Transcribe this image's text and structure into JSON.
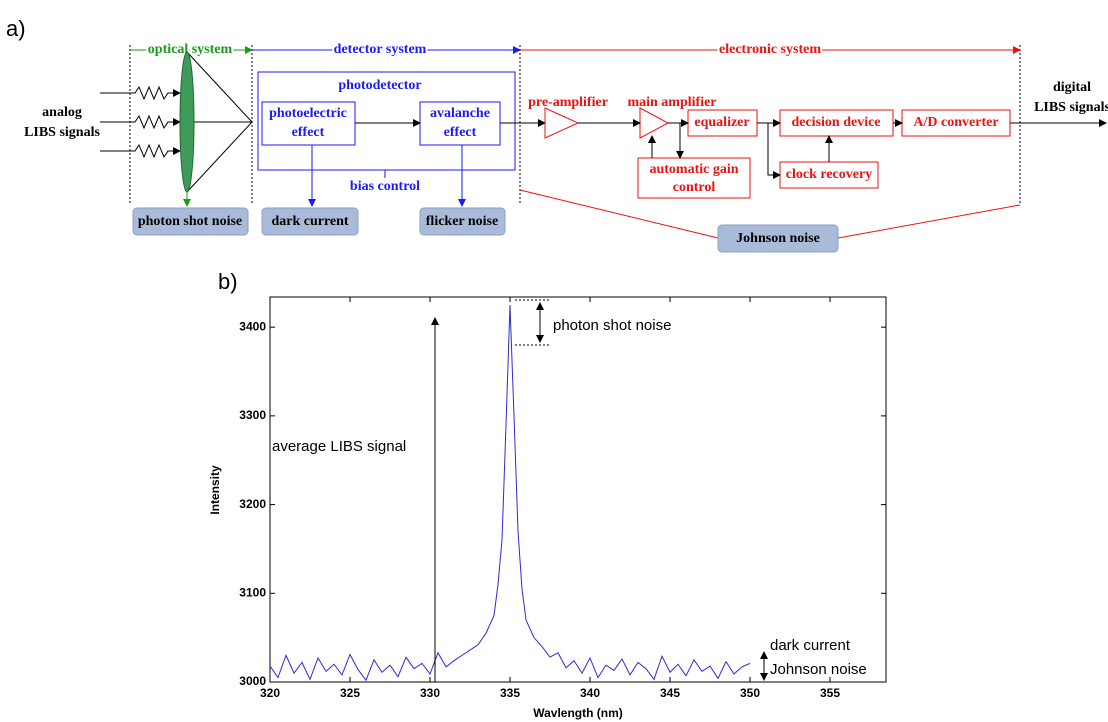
{
  "diagram": {
    "panel_label": "a)",
    "sections": [
      "optical system",
      "detector system",
      "electronic system"
    ],
    "input": [
      "analog",
      "LIBS signals"
    ],
    "photodetector": "photodetector",
    "photoelectric": [
      "photoelectric",
      "effect"
    ],
    "avalanche": [
      "avalanche",
      "effect"
    ],
    "bias": "bias control",
    "preamp": "pre-amplifier",
    "mainamp": "main amplifier",
    "equalizer": "equalizer",
    "decision": "decision device",
    "adc": "A/D converter",
    "agc": [
      "automatic gain",
      "control"
    ],
    "clock": "clock recovery",
    "output": [
      "digital",
      "LIBS signals"
    ],
    "noises": [
      "photon shot noise",
      "dark current",
      "flicker noise",
      "Johnson noise"
    ]
  },
  "chart_data": {
    "type": "line",
    "panel_label": "b)",
    "x_label": "Wavlength (nm)",
    "y_label": "Intensity",
    "annotations": [
      "average LIBS signal",
      "photon shot noise",
      "dark current",
      "Johnson noise"
    ],
    "color": "#2b2bd6",
    "x": [
      320,
      320.5,
      321,
      321.5,
      322,
      322.5,
      323,
      323.5,
      324,
      324.5,
      325,
      325.5,
      326,
      326.5,
      327,
      327.5,
      328,
      328.5,
      329,
      329.5,
      330,
      330.5,
      331,
      331.5,
      332,
      332.5,
      333,
      333.5,
      334,
      334.25,
      334.5,
      334.75,
      335,
      335.25,
      335.5,
      335.75,
      336,
      336.5,
      337,
      337.5,
      338,
      338.5,
      339,
      339.5,
      340,
      340.5,
      341,
      341.5,
      342,
      342.5,
      343,
      343.5,
      344,
      344.5,
      345,
      345.5,
      346,
      346.5,
      347,
      347.5,
      348,
      348.5,
      349,
      349.5,
      350
    ],
    "values": [
      3018,
      3005,
      3030,
      3010,
      3022,
      3003,
      3027,
      3012,
      3020,
      3008,
      3031,
      3014,
      3002,
      3025,
      3011,
      3019,
      3006,
      3028,
      3015,
      3021,
      3009,
      3033,
      3017,
      3024,
      3030,
      3036,
      3042,
      3055,
      3075,
      3110,
      3160,
      3290,
      3425,
      3300,
      3170,
      3105,
      3070,
      3050,
      3040,
      3028,
      3033,
      3016,
      3024,
      3010,
      3027,
      3005,
      3019,
      3013,
      3026,
      3008,
      3022,
      3015,
      3003,
      3029,
      3011,
      3020,
      3007,
      3025,
      3012,
      3018,
      3004,
      3023,
      3009,
      3017,
      3021
    ],
    "xlim": [
      320,
      358.5
    ],
    "ylim": [
      3000,
      3434
    ],
    "xticks": [
      320,
      325,
      330,
      335,
      340,
      345,
      350,
      355
    ],
    "yticks": [
      3000,
      3100,
      3200,
      3300,
      3400
    ],
    "grid": false
  }
}
